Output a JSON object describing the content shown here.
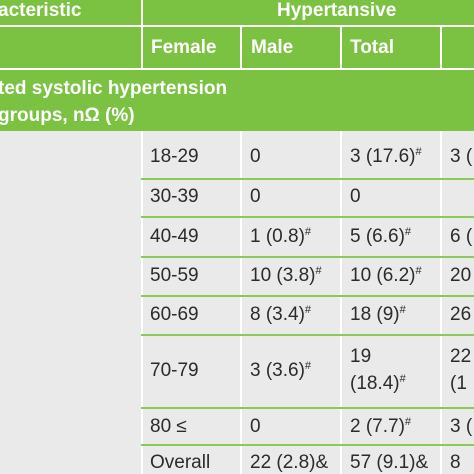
{
  "header": {
    "characteristic": "acteristic",
    "hypertensive": "Hypertansive",
    "female": "Female",
    "male": "Male",
    "total": "Total"
  },
  "section": {
    "line1": "ted systolic  hypertension",
    "line2": "groups, nΩ (%)"
  },
  "rows": [
    {
      "age": "18-29",
      "male": "0",
      "total": "3 (17.6)",
      "total_sup": "#",
      "extra": "3 ("
    },
    {
      "age": "30-39",
      "male": "0",
      "total": "0",
      "total_sup": "",
      "extra": ""
    },
    {
      "age": "40-49",
      "male": "1 (0.8)",
      "male_sup": "#",
      "total": "5 (6.6)",
      "total_sup": "#",
      "extra": "6 ("
    },
    {
      "age": "50-59",
      "male": "10 (3.8)",
      "male_sup": "#",
      "total": "10 (6.2)",
      "total_sup": "#",
      "extra": "20"
    },
    {
      "age": "60-69",
      "male": "8 (3.4)",
      "male_sup": "#",
      "total": "18 (9)",
      "total_sup": "#",
      "extra": "26"
    },
    {
      "age": "70-79",
      "male": "3 (3.6)",
      "male_sup": "#",
      "total_line1": "19",
      "total_line2": "(18.4)",
      "total_sup": "#",
      "extra1": "22",
      "extra2": "(1"
    },
    {
      "age": "80 ≤",
      "male": "0",
      "total": "2 (7.7)",
      "total_sup": "#",
      "extra": "3 ("
    },
    {
      "age": "Overall",
      "male": "22 (2.8)&",
      "total": "57 (9.1)&",
      "extra": "8"
    }
  ]
}
